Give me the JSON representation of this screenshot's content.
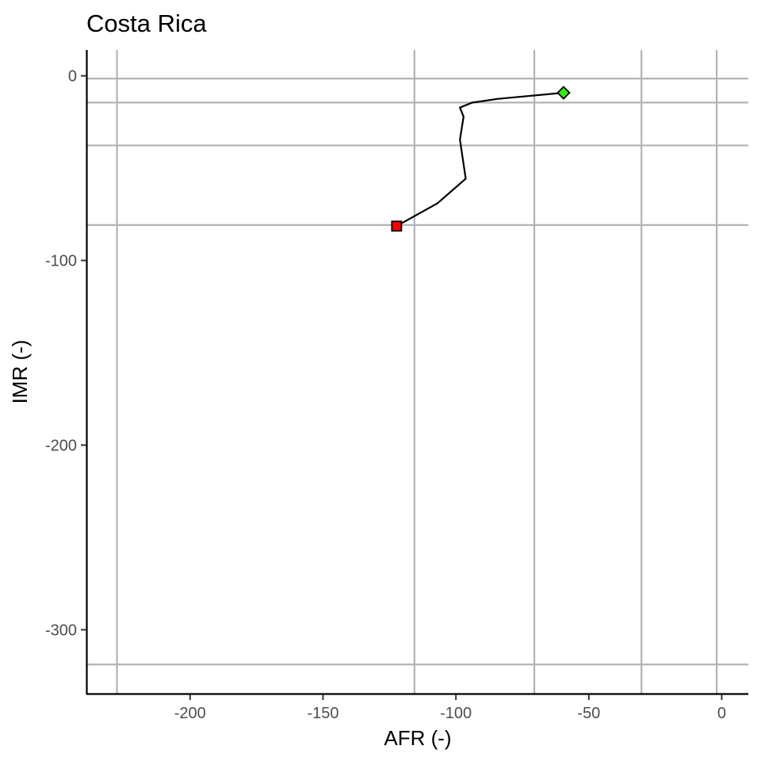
{
  "chart_data": {
    "type": "line",
    "title": "Costa Rica",
    "xlabel": "AFR (-)",
    "ylabel": "IMR (-)",
    "xlim": [
      -239,
      10
    ],
    "ylim": [
      -335,
      14
    ],
    "x_ticks": [
      -200,
      -150,
      -100,
      -50,
      0
    ],
    "y_ticks": [
      0,
      -100,
      -200,
      -300
    ],
    "x_tick_labels": [
      "-200",
      "-150",
      "-100",
      "-50",
      "0"
    ],
    "y_tick_labels": [
      "0",
      "-100",
      "-200",
      "-300"
    ],
    "v_grid": [
      -227.5,
      -115.6,
      -70.5,
      -30.2,
      -1.9
    ],
    "h_grid": [
      -1.5,
      -14.5,
      -37.7,
      -80.8,
      -318.8
    ],
    "grid": true,
    "legend": "none",
    "series": [
      {
        "color": "#000000",
        "points": [
          [
            -59.5,
            -9.2
          ],
          [
            -84.2,
            -12.5
          ],
          [
            -93.8,
            -14.5
          ],
          [
            -98.5,
            -17.2
          ],
          [
            -97.1,
            -22.2
          ],
          [
            -98.5,
            -34.5
          ],
          [
            -96.3,
            -55.7
          ],
          [
            -107.0,
            -69.1
          ],
          [
            -122.3,
            -81.4
          ]
        ]
      }
    ],
    "markers": [
      {
        "shape": "square",
        "color": "#ff0000",
        "x": -122.3,
        "y": -81.4
      },
      {
        "shape": "diamond",
        "color": "#33ee11",
        "x": -59.5,
        "y": -9.2
      }
    ]
  }
}
